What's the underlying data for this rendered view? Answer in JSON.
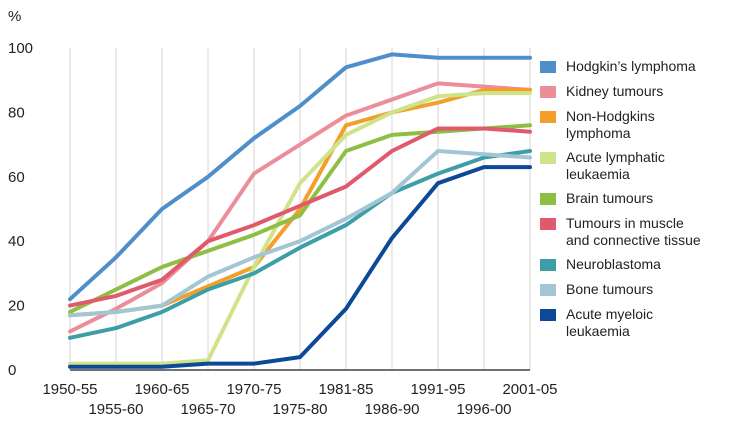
{
  "chart_data": {
    "type": "line",
    "ylabel": "%",
    "ylim": [
      0,
      100
    ],
    "yticks": [
      "0",
      "20",
      "40",
      "60",
      "80",
      "100"
    ],
    "grid": "vertical",
    "legend_position": "right",
    "categories": [
      "1950-55",
      "1955-60",
      "1960-65",
      "1965-70",
      "1970-75",
      "1975-80",
      "1981-85",
      "1986-90",
      "1991-95",
      "1996-00",
      "2001-05"
    ],
    "series": [
      {
        "name": "Hodgkin’s lymphoma",
        "color": "#4f8fc9",
        "values": [
          22,
          35,
          50,
          60,
          72,
          82,
          94,
          98,
          97,
          97,
          97
        ]
      },
      {
        "name": "Kidney tumours",
        "color": "#ec8e9a",
        "values": [
          12,
          19,
          27,
          40,
          61,
          70,
          79,
          84,
          89,
          88,
          87
        ]
      },
      {
        "name": "Non-Hodgkins\nlymphoma",
        "color": "#f2a02b",
        "values": [
          17,
          18,
          20,
          26,
          32,
          50,
          76,
          80,
          83,
          87,
          87
        ]
      },
      {
        "name": "Acute lymphatic\nleukaemia",
        "color": "#cfe38a",
        "values": [
          2,
          2,
          2,
          3,
          32,
          58,
          73,
          80,
          85,
          86,
          86
        ]
      },
      {
        "name": "Brain tumours",
        "color": "#8fbe45",
        "values": [
          18,
          25,
          32,
          37,
          42,
          48,
          68,
          73,
          74,
          75,
          76
        ]
      },
      {
        "name": "Tumours in muscle\nand connective tissue",
        "color": "#e05a6c",
        "values": [
          20,
          23,
          28,
          40,
          45,
          51,
          57,
          68,
          75,
          75,
          74
        ]
      },
      {
        "name": "Neuroblastoma",
        "color": "#3e9ea8",
        "values": [
          10,
          13,
          18,
          25,
          30,
          38,
          45,
          55,
          61,
          66,
          68
        ]
      },
      {
        "name": "Bone tumours",
        "color": "#a3c6d5",
        "values": [
          17,
          18,
          20,
          29,
          35,
          40,
          47,
          55,
          68,
          67,
          66
        ]
      },
      {
        "name": "Acute myeloic\nleukaemia",
        "color": "#0c4a97",
        "values": [
          1,
          1,
          1,
          2,
          2,
          4,
          19,
          41,
          58,
          63,
          63
        ]
      }
    ]
  }
}
